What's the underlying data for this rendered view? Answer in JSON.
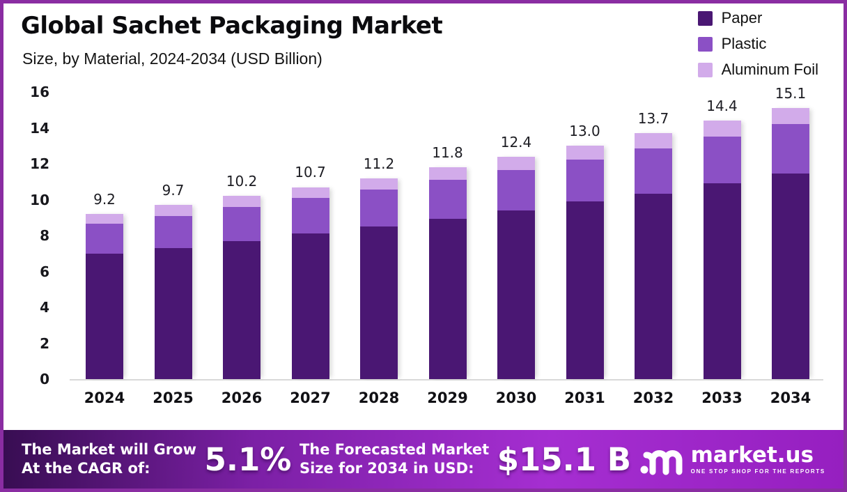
{
  "header": {
    "title": "Global Sachet Packaging Market",
    "subtitle": "Size, by Material, 2024-2034 (USD Billion)"
  },
  "legend": [
    {
      "label": "Paper",
      "color": "#4a1773"
    },
    {
      "label": "Plastic",
      "color": "#8b50c5"
    },
    {
      "label": "Aluminum Foil",
      "color": "#d2abea"
    }
  ],
  "chart_data": {
    "type": "bar",
    "stacked": true,
    "title": "Global Sachet Packaging Market Size, by Material, 2024-2034 (USD Billion)",
    "xlabel": "",
    "ylabel": "USD Billion",
    "ylim": [
      0,
      16
    ],
    "yticks": [
      0,
      2,
      4,
      6,
      8,
      10,
      12,
      14,
      16
    ],
    "grid": false,
    "legend_position": "top-right",
    "categories": [
      "2024",
      "2025",
      "2026",
      "2027",
      "2028",
      "2029",
      "2030",
      "2031",
      "2032",
      "2033",
      "2034"
    ],
    "series": [
      {
        "name": "Paper",
        "color": "#4a1773",
        "values": [
          7.0,
          7.3,
          7.7,
          8.1,
          8.5,
          8.95,
          9.4,
          9.9,
          10.35,
          10.9,
          11.45
        ]
      },
      {
        "name": "Plastic",
        "color": "#8b50c5",
        "values": [
          1.65,
          1.8,
          1.9,
          2.0,
          2.05,
          2.15,
          2.25,
          2.35,
          2.5,
          2.6,
          2.75
        ]
      },
      {
        "name": "Aluminum Foil",
        "color": "#d2abea",
        "values": [
          0.55,
          0.6,
          0.6,
          0.6,
          0.65,
          0.7,
          0.75,
          0.75,
          0.85,
          0.9,
          0.9
        ]
      }
    ],
    "totals": [
      "9.2",
      "9.7",
      "10.2",
      "10.7",
      "11.2",
      "11.8",
      "12.4",
      "13.0",
      "13.7",
      "14.4",
      "15.1"
    ]
  },
  "footer": {
    "cagr_label": "The Market will Grow\nAt the CAGR of:",
    "cagr_value": "5.1%",
    "forecast_label": "The Forecasted Market\nSize for 2034 in USD:",
    "forecast_value": "$15.1 B",
    "brand_name": "market.us",
    "brand_tagline": "ONE STOP SHOP FOR THE REPORTS"
  },
  "frame": {
    "border_color": "#8a2da2",
    "banner_gradient": [
      "#380d52",
      "#7c20a6",
      "#a52ed1",
      "#961fc0"
    ]
  }
}
